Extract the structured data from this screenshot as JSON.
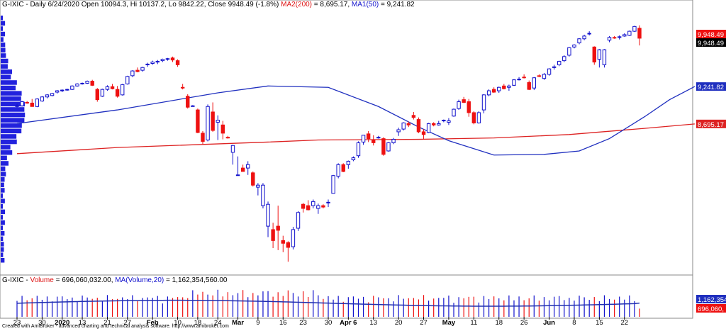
{
  "header": {
    "symbol": "G-IXIC",
    "period": "Daily",
    "date": "6/24/2020",
    "open_text": "Open 10094.3,",
    "hi_text": "Hi 10137.2,",
    "lo_text": "Lo 9842.22,",
    "close_text": "Close 9948.49",
    "change_text": "(-1.8%)",
    "ma2_text": "MA2(200)",
    "ma2_value": "= 8,695.17,",
    "ma1_text": "MA1(50)",
    "ma1_value": "= 9,241.82"
  },
  "volume_header": {
    "symbol": "G-IXIC -",
    "volume_text": "Volume",
    "volume_value": "= 696,060,032.00,",
    "ma_text": "MA(Volume,20)",
    "ma_value": "= 1,162,354,560.00"
  },
  "footer": "Created with AmiBroker - advanced charting and technical analysis software. http://www.amibroker.com",
  "price_labels": {
    "close_red": "9,948.49",
    "close_black": "9,948.49",
    "ma50": "9,241.82",
    "ma200": "8,695.17",
    "vol_ma": "1,162,354",
    "vol": "696,060,"
  },
  "colors": {
    "up": "#1010cc",
    "down": "#ee1111",
    "ma50": "#1f2fbf",
    "ma200": "#dd2222",
    "profile": "#2222dd"
  },
  "chart_data": {
    "type": "candlestick",
    "title": "G-IXIC - Daily 6/24/2020",
    "x_tick_labels": [
      "23",
      "30",
      "2020",
      "13",
      "21",
      "27",
      "Feb",
      "10",
      "18",
      "24",
      "Mar",
      "9",
      "16",
      "23",
      "30",
      "Apr 6",
      "13",
      "20",
      "27",
      "May",
      "11",
      "18",
      "26",
      "Jun",
      "8",
      "15",
      "22"
    ],
    "ylim": [
      6600,
      10300
    ],
    "candles": [
      {
        "o": 8950,
        "h": 8990,
        "l": 8930,
        "c": 8960
      },
      {
        "o": 8960,
        "h": 9030,
        "l": 8950,
        "c": 9020
      },
      {
        "o": 9010,
        "h": 9030,
        "l": 8990,
        "c": 9000
      },
      {
        "o": 9000,
        "h": 9060,
        "l": 8970,
        "c": 8950
      },
      {
        "o": 8950,
        "h": 9070,
        "l": 8940,
        "c": 9060
      },
      {
        "o": 9030,
        "h": 9100,
        "l": 9020,
        "c": 9090
      },
      {
        "o": 9090,
        "h": 9130,
        "l": 9070,
        "c": 9120
      },
      {
        "o": 9110,
        "h": 9150,
        "l": 9100,
        "c": 9140
      },
      {
        "o": 9160,
        "h": 9190,
        "l": 9140,
        "c": 9180
      },
      {
        "o": 9180,
        "h": 9200,
        "l": 9160,
        "c": 9190
      },
      {
        "o": 9190,
        "h": 9210,
        "l": 9180,
        "c": 9200
      },
      {
        "o": 9200,
        "h": 9260,
        "l": 9190,
        "c": 9250
      },
      {
        "o": 9250,
        "h": 9290,
        "l": 9240,
        "c": 9280
      },
      {
        "o": 9280,
        "h": 9300,
        "l": 9270,
        "c": 9290
      },
      {
        "o": 9290,
        "h": 9330,
        "l": 9280,
        "c": 9320
      },
      {
        "o": 9320,
        "h": 9340,
        "l": 9250,
        "c": 9260
      },
      {
        "o": 9200,
        "h": 9220,
        "l": 9020,
        "c": 9050
      },
      {
        "o": 9100,
        "h": 9210,
        "l": 9090,
        "c": 9200
      },
      {
        "o": 9200,
        "h": 9260,
        "l": 9180,
        "c": 9240
      },
      {
        "o": 9240,
        "h": 9280,
        "l": 9200,
        "c": 9210
      },
      {
        "o": 9200,
        "h": 9250,
        "l": 9080,
        "c": 9100
      },
      {
        "o": 9120,
        "h": 9280,
        "l": 9110,
        "c": 9270
      },
      {
        "o": 9280,
        "h": 9400,
        "l": 9270,
        "c": 9390
      },
      {
        "o": 9400,
        "h": 9480,
        "l": 9380,
        "c": 9470
      },
      {
        "o": 9480,
        "h": 9520,
        "l": 9450,
        "c": 9460
      },
      {
        "o": 9480,
        "h": 9530,
        "l": 9460,
        "c": 9520
      },
      {
        "o": 9560,
        "h": 9590,
        "l": 9530,
        "c": 9570
      },
      {
        "o": 9580,
        "h": 9620,
        "l": 9560,
        "c": 9600
      },
      {
        "o": 9600,
        "h": 9630,
        "l": 9570,
        "c": 9610
      },
      {
        "o": 9620,
        "h": 9650,
        "l": 9600,
        "c": 9640
      },
      {
        "o": 9640,
        "h": 9660,
        "l": 9620,
        "c": 9650
      },
      {
        "o": 9660,
        "h": 9680,
        "l": 9600,
        "c": 9630
      },
      {
        "o": 9620,
        "h": 9640,
        "l": 9530,
        "c": 9560
      },
      {
        "o": 9230,
        "h": 9280,
        "l": 9200,
        "c": 9220
      },
      {
        "o": 9100,
        "h": 9130,
        "l": 8920,
        "c": 8940
      },
      {
        "o": 8950,
        "h": 8970,
        "l": 8950,
        "c": 8960
      },
      {
        "o": 8900,
        "h": 8920,
        "l": 8560,
        "c": 8570
      },
      {
        "o": 8560,
        "h": 8590,
        "l": 8400,
        "c": 8440
      },
      {
        "o": 8460,
        "h": 8980,
        "l": 8440,
        "c": 8950
      },
      {
        "o": 8870,
        "h": 9010,
        "l": 8580,
        "c": 8600
      },
      {
        "o": 8720,
        "h": 8820,
        "l": 8460,
        "c": 8750
      },
      {
        "o": 8680,
        "h": 8740,
        "l": 8470,
        "c": 8560
      },
      {
        "o": 8500,
        "h": 8520,
        "l": 8480,
        "c": 8490
      },
      {
        "o": 8280,
        "h": 8390,
        "l": 8100,
        "c": 8380
      },
      {
        "o": 7950,
        "h": 8220,
        "l": 7950,
        "c": 7950
      },
      {
        "o": 8050,
        "h": 8100,
        "l": 8000,
        "c": 8000
      },
      {
        "o": 8050,
        "h": 8150,
        "l": 7950,
        "c": 8100
      },
      {
        "o": 7980,
        "h": 8000,
        "l": 7780,
        "c": 7800
      },
      {
        "o": 7770,
        "h": 7830,
        "l": 7650,
        "c": 7800
      },
      {
        "o": 7500,
        "h": 7830,
        "l": 7460,
        "c": 7800
      },
      {
        "o": 7200,
        "h": 7560,
        "l": 7040,
        "c": 7520
      },
      {
        "o": 7150,
        "h": 7250,
        "l": 6880,
        "c": 6990
      },
      {
        "o": 7200,
        "h": 7500,
        "l": 6850,
        "c": 7140
      },
      {
        "o": 6990,
        "h": 7060,
        "l": 6820,
        "c": 6950
      },
      {
        "o": 6960,
        "h": 6980,
        "l": 6680,
        "c": 6890
      },
      {
        "o": 6900,
        "h": 7190,
        "l": 6860,
        "c": 7150
      },
      {
        "o": 7170,
        "h": 7420,
        "l": 7130,
        "c": 7400
      },
      {
        "o": 7520,
        "h": 7540,
        "l": 7400,
        "c": 7460
      },
      {
        "o": 7500,
        "h": 7580,
        "l": 7430,
        "c": 7440
      },
      {
        "o": 7500,
        "h": 7590,
        "l": 7460,
        "c": 7560
      },
      {
        "o": 7460,
        "h": 7530,
        "l": 7380,
        "c": 7500
      },
      {
        "o": 7500,
        "h": 7520,
        "l": 7460,
        "c": 7480
      },
      {
        "o": 7550,
        "h": 7590,
        "l": 7480,
        "c": 7550
      },
      {
        "o": 7680,
        "h": 7950,
        "l": 7680,
        "c": 7940
      },
      {
        "o": 7930,
        "h": 8120,
        "l": 7900,
        "c": 8100
      },
      {
        "o": 8100,
        "h": 8120,
        "l": 7990,
        "c": 8000
      },
      {
        "o": 8100,
        "h": 8160,
        "l": 8040,
        "c": 8150
      },
      {
        "o": 8170,
        "h": 8220,
        "l": 8150,
        "c": 8200
      },
      {
        "o": 8230,
        "h": 8440,
        "l": 8200,
        "c": 8420
      },
      {
        "o": 8430,
        "h": 8530,
        "l": 8390,
        "c": 8530
      },
      {
        "o": 8550,
        "h": 8590,
        "l": 8430,
        "c": 8480
      },
      {
        "o": 8460,
        "h": 8530,
        "l": 8380,
        "c": 8420
      },
      {
        "o": 8500,
        "h": 8520,
        "l": 8480,
        "c": 8500
      },
      {
        "o": 8480,
        "h": 8500,
        "l": 8230,
        "c": 8250
      },
      {
        "o": 8300,
        "h": 8430,
        "l": 8290,
        "c": 8420
      },
      {
        "o": 8420,
        "h": 8490,
        "l": 8400,
        "c": 8470
      },
      {
        "o": 8580,
        "h": 8640,
        "l": 8520,
        "c": 8610
      },
      {
        "o": 8620,
        "h": 8720,
        "l": 8600,
        "c": 8710
      },
      {
        "o": 8700,
        "h": 8730,
        "l": 8650,
        "c": 8680
      },
      {
        "o": 8820,
        "h": 8870,
        "l": 8760,
        "c": 8790
      },
      {
        "o": 8760,
        "h": 8790,
        "l": 8560,
        "c": 8580
      },
      {
        "o": 8580,
        "h": 8620,
        "l": 8470,
        "c": 8540
      },
      {
        "o": 8570,
        "h": 8710,
        "l": 8560,
        "c": 8700
      },
      {
        "o": 8700,
        "h": 8720,
        "l": 8660,
        "c": 8680
      },
      {
        "o": 8680,
        "h": 8740,
        "l": 8670,
        "c": 8700
      },
      {
        "o": 8740,
        "h": 8760,
        "l": 8720,
        "c": 8750
      },
      {
        "o": 8720,
        "h": 8780,
        "l": 8680,
        "c": 8740
      },
      {
        "o": 8810,
        "h": 8920,
        "l": 8800,
        "c": 8910
      },
      {
        "o": 8920,
        "h": 9050,
        "l": 8900,
        "c": 9020
      },
      {
        "o": 9050,
        "h": 9090,
        "l": 9000,
        "c": 9010
      },
      {
        "o": 9020,
        "h": 9060,
        "l": 8800,
        "c": 8860
      },
      {
        "o": 8860,
        "h": 8880,
        "l": 8690,
        "c": 8710
      },
      {
        "o": 8710,
        "h": 8880,
        "l": 8700,
        "c": 8860
      },
      {
        "o": 8900,
        "h": 9130,
        "l": 8850,
        "c": 9120
      },
      {
        "o": 9120,
        "h": 9200,
        "l": 9100,
        "c": 9180
      },
      {
        "o": 9200,
        "h": 9230,
        "l": 9150,
        "c": 9160
      },
      {
        "o": 9180,
        "h": 9240,
        "l": 9150,
        "c": 9230
      },
      {
        "o": 9250,
        "h": 9280,
        "l": 9200,
        "c": 9210
      },
      {
        "o": 9230,
        "h": 9270,
        "l": 9180,
        "c": 9250
      },
      {
        "o": 9260,
        "h": 9350,
        "l": 9250,
        "c": 9340
      },
      {
        "o": 9350,
        "h": 9380,
        "l": 9330,
        "c": 9350
      },
      {
        "o": 9380,
        "h": 9420,
        "l": 9360,
        "c": 9370
      },
      {
        "o": 9300,
        "h": 9330,
        "l": 9190,
        "c": 9200
      },
      {
        "o": 9220,
        "h": 9380,
        "l": 9190,
        "c": 9370
      },
      {
        "o": 9400,
        "h": 9420,
        "l": 9380,
        "c": 9390
      },
      {
        "o": 9360,
        "h": 9440,
        "l": 9340,
        "c": 9420
      },
      {
        "o": 9420,
        "h": 9510,
        "l": 9400,
        "c": 9500
      },
      {
        "o": 9520,
        "h": 9560,
        "l": 9490,
        "c": 9530
      },
      {
        "o": 9560,
        "h": 9620,
        "l": 9540,
        "c": 9610
      },
      {
        "o": 9620,
        "h": 9700,
        "l": 9600,
        "c": 9680
      },
      {
        "o": 9700,
        "h": 9820,
        "l": 9680,
        "c": 9810
      },
      {
        "o": 9820,
        "h": 9860,
        "l": 9800,
        "c": 9850
      },
      {
        "o": 9880,
        "h": 9950,
        "l": 9860,
        "c": 9940
      },
      {
        "o": 9940,
        "h": 10000,
        "l": 9920,
        "c": 9980
      },
      {
        "o": 10010,
        "h": 10050,
        "l": 9990,
        "c": 10020
      },
      {
        "o": 9820,
        "h": 9830,
        "l": 9560,
        "c": 9600
      },
      {
        "o": 9640,
        "h": 9790,
        "l": 9520,
        "c": 9780
      },
      {
        "o": 9560,
        "h": 9790,
        "l": 9520,
        "c": 9780
      },
      {
        "o": 9920,
        "h": 9980,
        "l": 9890,
        "c": 9960
      },
      {
        "o": 9960,
        "h": 9980,
        "l": 9940,
        "c": 9950
      },
      {
        "o": 9960,
        "h": 9990,
        "l": 9930,
        "c": 9970
      },
      {
        "o": 9980,
        "h": 10020,
        "l": 9970,
        "c": 10000
      },
      {
        "o": 9990,
        "h": 10060,
        "l": 9980,
        "c": 10050
      },
      {
        "o": 10050,
        "h": 10130,
        "l": 10040,
        "c": 10120
      },
      {
        "o": 10094.3,
        "h": 10137.2,
        "l": 9842.22,
        "c": 9948.49
      }
    ],
    "series": [
      {
        "name": "MA2(200)",
        "last": 8695.17,
        "points": [
          [
            0,
            8260
          ],
          [
            20,
            8350
          ],
          [
            50,
            8430
          ],
          [
            60,
            8460
          ],
          [
            80,
            8470
          ],
          [
            95,
            8490
          ],
          [
            110,
            8540
          ],
          [
            125,
            8630
          ],
          [
            135,
            8695.17
          ]
        ]
      },
      {
        "name": "MA1(50)",
        "last": 9241.82,
        "points": [
          [
            0,
            8700
          ],
          [
            20,
            8900
          ],
          [
            40,
            9150
          ],
          [
            50,
            9250
          ],
          [
            62,
            9230
          ],
          [
            72,
            8950
          ],
          [
            80,
            8650
          ],
          [
            86,
            8450
          ],
          [
            95,
            8240
          ],
          [
            105,
            8250
          ],
          [
            112,
            8300
          ],
          [
            118,
            8480
          ],
          [
            125,
            8800
          ],
          [
            130,
            9050
          ],
          [
            135,
            9241.82
          ]
        ]
      }
    ],
    "volume": {
      "ylim": [
        0,
        3000000000
      ],
      "ma20_last": 1162354560,
      "last": 696060032
    }
  }
}
